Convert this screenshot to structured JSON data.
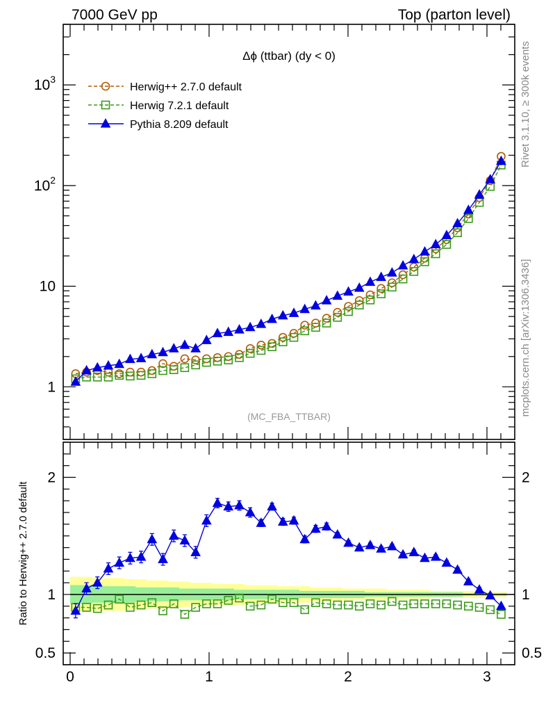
{
  "header": {
    "left": "7000 GeV pp",
    "right": "Top (parton level)"
  },
  "side_labels": {
    "rivet": "Rivet 3.1.10, ≥ 300k events",
    "mcplots": "mcplots.cern.ch [arXiv:1306.3436]"
  },
  "chart_data": {
    "type": "line",
    "title": "Δϕ (ttbar) (dy < 0)",
    "watermark": "(MC_FBA_TTBAR)",
    "xlabel": "",
    "xlim": [
      -0.05,
      3.2
    ],
    "x_ticks": [
      "0",
      "1",
      "2",
      "3"
    ],
    "main": {
      "ylabel": "",
      "yscale": "log",
      "ylim": [
        0.3,
        4000
      ],
      "y_ticks": [
        {
          "value": 1,
          "label": "1"
        },
        {
          "value": 10,
          "label": "10"
        },
        {
          "value": 100,
          "label": "10",
          "exp": "2"
        },
        {
          "value": 1000,
          "label": "10",
          "exp": "3"
        }
      ]
    },
    "ratio": {
      "ylabel": "Ratio to Herwig++ 2.7.0 default",
      "ylim": [
        0.4,
        2.3
      ],
      "y_ticks": [
        "0.5",
        "1",
        "2"
      ],
      "y_tick_values": [
        0.5,
        1,
        2
      ]
    },
    "legend_position": "top-left",
    "x": [
      0.0393,
      0.1178,
      0.1963,
      0.2749,
      0.3534,
      0.432,
      0.5105,
      0.589,
      0.6676,
      0.7461,
      0.8247,
      0.9032,
      0.9817,
      1.0603,
      1.1388,
      1.2174,
      1.2959,
      1.3744,
      1.453,
      1.5315,
      1.6101,
      1.6886,
      1.7671,
      1.8457,
      1.9242,
      2.0028,
      2.0813,
      2.1598,
      2.2384,
      2.3169,
      2.3955,
      2.474,
      2.5525,
      2.6311,
      2.7096,
      2.7882,
      2.8667,
      2.9452,
      3.0238,
      3.1023
    ],
    "series": [
      {
        "name": "Herwig++ 2.7.0 default",
        "color": "#b35a00",
        "marker": "open-circle",
        "dash": "dashed",
        "values": [
          1.35,
          1.4,
          1.45,
          1.4,
          1.35,
          1.4,
          1.4,
          1.45,
          1.7,
          1.6,
          1.9,
          1.85,
          1.9,
          1.95,
          2.0,
          2.1,
          2.4,
          2.6,
          2.7,
          3.1,
          3.4,
          4.1,
          4.3,
          4.8,
          5.5,
          6.3,
          7.2,
          8.2,
          9.5,
          10.8,
          13.0,
          15.5,
          19.0,
          23.5,
          29.0,
          38.0,
          52.0,
          76.0,
          112.0,
          195.0
        ]
      },
      {
        "name": "Herwig 7.2.1 default",
        "color": "#3a9a1a",
        "marker": "open-square",
        "dash": "dashed",
        "values": [
          1.2,
          1.25,
          1.25,
          1.25,
          1.3,
          1.28,
          1.3,
          1.35,
          1.45,
          1.48,
          1.55,
          1.65,
          1.75,
          1.8,
          1.85,
          1.95,
          2.15,
          2.3,
          2.5,
          2.8,
          3.1,
          3.6,
          3.9,
          4.3,
          4.9,
          5.6,
          6.5,
          7.3,
          8.4,
          9.8,
          11.8,
          14.0,
          17.5,
          21.0,
          26.0,
          34.0,
          47.0,
          68.0,
          98.0,
          160.0
        ]
      },
      {
        "name": "Pythia 8.209 default",
        "color": "#0000e0",
        "marker": "filled-triangle",
        "dash": "solid",
        "values": [
          1.12,
          1.45,
          1.55,
          1.62,
          1.68,
          1.88,
          1.92,
          2.1,
          2.2,
          2.4,
          2.6,
          2.4,
          2.9,
          3.4,
          3.5,
          3.7,
          3.9,
          4.2,
          4.7,
          5.1,
          5.4,
          5.9,
          6.4,
          7.2,
          8.0,
          8.8,
          9.6,
          11.0,
          12.3,
          13.6,
          16.0,
          18.5,
          22.0,
          26.0,
          32.0,
          42.0,
          57.0,
          81.0,
          115.0,
          175.0
        ]
      }
    ],
    "ratio_series": [
      {
        "name": "Herwig 7.2.1 default",
        "values": [
          0.89,
          0.89,
          0.88,
          0.91,
          0.96,
          0.89,
          0.91,
          0.93,
          0.86,
          0.92,
          0.83,
          0.89,
          0.92,
          0.92,
          0.95,
          0.97,
          0.9,
          0.91,
          0.96,
          0.93,
          0.93,
          0.87,
          0.93,
          0.92,
          0.91,
          0.91,
          0.9,
          0.92,
          0.91,
          0.94,
          0.91,
          0.92,
          0.92,
          0.92,
          0.92,
          0.91,
          0.9,
          0.89,
          0.87,
          0.83
        ]
      },
      {
        "name": "Pythia 8.209 default",
        "values": [
          0.86,
          1.05,
          1.1,
          1.22,
          1.27,
          1.31,
          1.32,
          1.47,
          1.3,
          1.5,
          1.46,
          1.36,
          1.63,
          1.78,
          1.75,
          1.76,
          1.7,
          1.61,
          1.75,
          1.62,
          1.63,
          1.47,
          1.56,
          1.58,
          1.51,
          1.44,
          1.4,
          1.42,
          1.39,
          1.41,
          1.34,
          1.36,
          1.31,
          1.32,
          1.27,
          1.21,
          1.11,
          1.04,
          0.99,
          0.9
        ]
      }
    ],
    "ratio_errors": [
      0.06,
      0.05,
      0.05,
      0.05,
      0.05,
      0.05,
      0.05,
      0.05,
      0.05,
      0.05,
      0.05,
      0.05,
      0.05,
      0.04,
      0.04,
      0.04,
      0.04,
      0.03,
      0.03,
      0.03,
      0.03,
      0.03,
      0.03,
      0.03,
      0.02,
      0.02,
      0.02,
      0.02,
      0.02,
      0.02,
      0.02,
      0.02,
      0.02,
      0.02,
      0.02,
      0.02,
      0.02,
      0.02,
      0.02,
      0.01
    ],
    "band_yellow": [
      0.15,
      0.15,
      0.14,
      0.14,
      0.14,
      0.13,
      0.13,
      0.12,
      0.12,
      0.11,
      0.11,
      0.1,
      0.1,
      0.09,
      0.09,
      0.09,
      0.08,
      0.08,
      0.08,
      0.07,
      0.07,
      0.07,
      0.06,
      0.06,
      0.06,
      0.05,
      0.05,
      0.05,
      0.05,
      0.04,
      0.04,
      0.04,
      0.04,
      0.03,
      0.03,
      0.03,
      0.03,
      0.03,
      0.02,
      0.02
    ],
    "band_green": [
      0.08,
      0.08,
      0.07,
      0.07,
      0.07,
      0.07,
      0.06,
      0.06,
      0.06,
      0.06,
      0.05,
      0.05,
      0.05,
      0.05,
      0.05,
      0.04,
      0.04,
      0.04,
      0.04,
      0.04,
      0.04,
      0.03,
      0.03,
      0.03,
      0.03,
      0.03,
      0.03,
      0.02,
      0.02,
      0.02,
      0.02,
      0.02,
      0.02,
      0.02,
      0.02,
      0.02,
      0.01,
      0.01,
      0.01,
      0.01
    ]
  }
}
